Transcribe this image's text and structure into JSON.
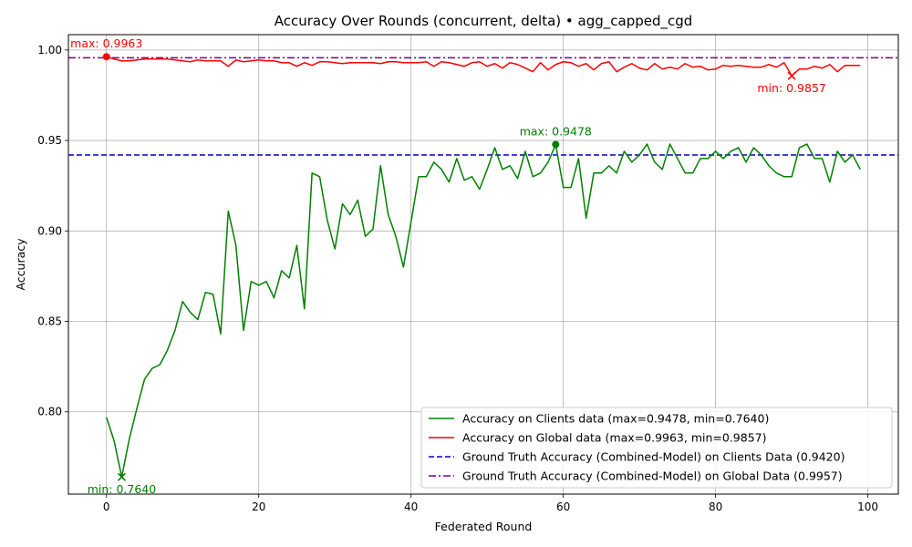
{
  "chart_data": {
    "type": "line",
    "title": "Accuracy Over Rounds (concurrent, delta) • agg_capped_cgd",
    "xlabel": "Federated Round",
    "ylabel": "Accuracy",
    "xlim": [
      -5,
      104
    ],
    "ylim": [
      0.7545,
      1.0085
    ],
    "x_ticks": [
      0,
      20,
      40,
      60,
      80,
      100
    ],
    "x_tick_labels": [
      "0",
      "20",
      "40",
      "60",
      "80",
      "100"
    ],
    "y_ticks": [
      0.8,
      0.85,
      0.9,
      0.95,
      1.0
    ],
    "y_tick_labels": [
      "0.80",
      "0.85",
      "0.90",
      "0.95",
      "1.00"
    ],
    "grid": true,
    "legend_position": "bottom-right",
    "series": [
      {
        "name": "Accuracy on Clients data (max=0.9478, min=0.7640)",
        "color": "#008000",
        "style": "solid",
        "values": [
          0.797,
          0.784,
          0.764,
          0.785,
          0.802,
          0.818,
          0.824,
          0.826,
          0.834,
          0.845,
          0.861,
          0.855,
          0.851,
          0.866,
          0.865,
          0.843,
          0.911,
          0.892,
          0.845,
          0.872,
          0.87,
          0.872,
          0.863,
          0.878,
          0.874,
          0.892,
          0.857,
          0.932,
          0.93,
          0.906,
          0.89,
          0.915,
          0.909,
          0.917,
          0.897,
          0.901,
          0.936,
          0.909,
          0.897,
          0.88,
          0.905,
          0.93,
          0.93,
          0.938,
          0.934,
          0.927,
          0.94,
          0.928,
          0.93,
          0.923,
          0.934,
          0.946,
          0.934,
          0.936,
          0.929,
          0.944,
          0.93,
          0.932,
          0.938,
          0.9478,
          0.924,
          0.924,
          0.94,
          0.907,
          0.932,
          0.932,
          0.936,
          0.932,
          0.944,
          0.938,
          0.942,
          0.948,
          0.938,
          0.934,
          0.948,
          0.94,
          0.932,
          0.932,
          0.94,
          0.94,
          0.944,
          0.94,
          0.944,
          0.946,
          0.938,
          0.946,
          0.942,
          0.936,
          0.932,
          0.93,
          0.93,
          0.946,
          0.948,
          0.94,
          0.94,
          0.927,
          0.944,
          0.938,
          0.942,
          0.934
        ]
      },
      {
        "name": "Accuracy on Global data (max=0.9963, min=0.9857)",
        "color": "#ff0000",
        "style": "solid",
        "values": [
          0.9963,
          0.995,
          0.994,
          0.994,
          0.9945,
          0.995,
          0.995,
          0.995,
          0.995,
          0.9945,
          0.994,
          0.9935,
          0.9945,
          0.994,
          0.994,
          0.994,
          0.991,
          0.9945,
          0.9935,
          0.994,
          0.9945,
          0.994,
          0.994,
          0.993,
          0.993,
          0.991,
          0.993,
          0.9915,
          0.9935,
          0.9935,
          0.993,
          0.9925,
          0.993,
          0.993,
          0.993,
          0.993,
          0.9925,
          0.9935,
          0.9935,
          0.993,
          0.993,
          0.993,
          0.9935,
          0.991,
          0.9935,
          0.993,
          0.992,
          0.991,
          0.993,
          0.9935,
          0.991,
          0.9925,
          0.99,
          0.993,
          0.992,
          0.99,
          0.988,
          0.993,
          0.989,
          0.992,
          0.9935,
          0.993,
          0.991,
          0.9925,
          0.989,
          0.9925,
          0.9935,
          0.988,
          0.9905,
          0.9925,
          0.99,
          0.989,
          0.9925,
          0.9895,
          0.9905,
          0.9895,
          0.9925,
          0.9905,
          0.991,
          0.989,
          0.9895,
          0.9915,
          0.991,
          0.9915,
          0.991,
          0.9905,
          0.9905,
          0.992,
          0.9905,
          0.993,
          0.9857,
          0.9895,
          0.9895,
          0.991,
          0.99,
          0.992,
          0.988,
          0.9915,
          0.9915,
          0.9915
        ]
      },
      {
        "name": "Ground Truth Accuracy (Combined-Model) on Clients Data (0.9420)",
        "color": "#0000cc",
        "style": "dashed",
        "constant": 0.942
      },
      {
        "name": "Ground Truth Accuracy (Combined-Model) on Global Data (0.9957)",
        "color": "#800080",
        "style": "dashdot",
        "constant": 0.9957
      }
    ],
    "annotations": [
      {
        "label": "max: 0.9963",
        "x": 0,
        "y": 0.9963,
        "color": "#ff0000",
        "marker": "dot"
      },
      {
        "label": "min: 0.9857",
        "x": 90,
        "y": 0.9857,
        "color": "#ff0000",
        "marker": "x"
      },
      {
        "label": "max: 0.9478",
        "x": 59,
        "y": 0.9478,
        "color": "#008000",
        "marker": "dot"
      },
      {
        "label": "min: 0.7640",
        "x": 2,
        "y": 0.764,
        "color": "#008000",
        "marker": "x"
      }
    ]
  }
}
